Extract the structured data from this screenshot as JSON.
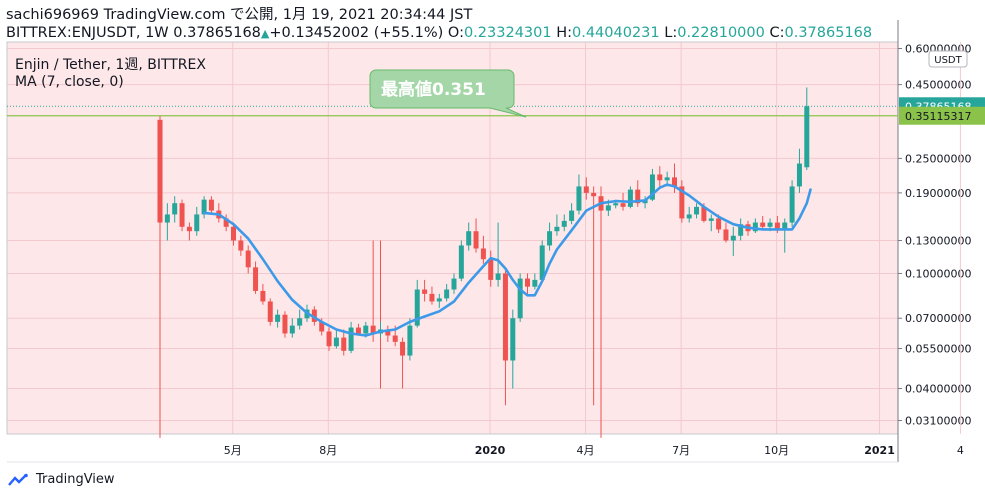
{
  "header": {
    "line1": "sachi696969 TradingView.com で公開, 1月 19, 2021 20:34:44 JST",
    "line2_prefix": "BITTREX:ENJUSDT, 1W 0.37865168",
    "change": "+0.13452002 (+55.1%)",
    "o_label": "O:",
    "o_value": "0.23324301",
    "h_label": "H:",
    "h_value": "0.44040231",
    "l_label": "L:",
    "l_value": "0.22810000",
    "c_label": "C:",
    "c_value": "0.37865168"
  },
  "chart_data": {
    "type": "line",
    "symbol_title": "Enjin / Tether, 1週, BITTREX",
    "indicator": "MA (7, close, 0)",
    "currency": "USDT",
    "y_scale": "log",
    "y_ticks": [
      0.6,
      0.45,
      0.25,
      0.19,
      0.13,
      0.1,
      0.07,
      0.055,
      0.04,
      0.031
    ],
    "y_tick_labels": [
      "0.60000000",
      "0.45000000",
      "0.25000000",
      "0.19000000",
      "0.13000000",
      "0.10000000",
      "0.07000000",
      "0.05500000",
      "0.04000000",
      "0.03100000"
    ],
    "x_tick_labels": [
      "5月",
      "8月",
      "2020",
      "4月",
      "7月",
      "10月",
      "2021",
      "4"
    ],
    "last_price_label": "0.37865168",
    "resistance_label": "0.35115317",
    "resistance_value": 0.35115317,
    "annotation": "最高値0.351",
    "candles": [
      [
        0.34,
        0.35,
        0.145,
        0.15
      ],
      [
        0.15,
        0.175,
        0.13,
        0.16
      ],
      [
        0.16,
        0.185,
        0.15,
        0.175
      ],
      [
        0.175,
        0.18,
        0.14,
        0.145
      ],
      [
        0.145,
        0.15,
        0.13,
        0.14
      ],
      [
        0.14,
        0.17,
        0.135,
        0.16
      ],
      [
        0.16,
        0.185,
        0.155,
        0.18
      ],
      [
        0.18,
        0.185,
        0.16,
        0.165
      ],
      [
        0.165,
        0.175,
        0.15,
        0.155
      ],
      [
        0.155,
        0.16,
        0.14,
        0.145
      ],
      [
        0.145,
        0.15,
        0.125,
        0.13
      ],
      [
        0.13,
        0.135,
        0.115,
        0.12
      ],
      [
        0.12,
        0.125,
        0.1,
        0.105
      ],
      [
        0.105,
        0.11,
        0.085,
        0.087
      ],
      [
        0.087,
        0.092,
        0.078,
        0.08
      ],
      [
        0.08,
        0.082,
        0.066,
        0.068
      ],
      [
        0.068,
        0.075,
        0.065,
        0.072
      ],
      [
        0.072,
        0.074,
        0.06,
        0.062
      ],
      [
        0.062,
        0.07,
        0.06,
        0.066
      ],
      [
        0.066,
        0.075,
        0.064,
        0.07
      ],
      [
        0.07,
        0.078,
        0.068,
        0.075
      ],
      [
        0.075,
        0.077,
        0.066,
        0.068
      ],
      [
        0.068,
        0.07,
        0.061,
        0.063
      ],
      [
        0.063,
        0.065,
        0.054,
        0.056
      ],
      [
        0.056,
        0.064,
        0.055,
        0.06
      ],
      [
        0.06,
        0.064,
        0.052,
        0.054
      ],
      [
        0.054,
        0.068,
        0.053,
        0.065
      ],
      [
        0.065,
        0.067,
        0.061,
        0.062
      ],
      [
        0.062,
        0.068,
        0.06,
        0.066
      ],
      [
        0.066,
        0.13,
        0.058,
        0.062
      ],
      [
        0.062,
        0.068,
        0.06,
        0.064
      ],
      [
        0.064,
        0.066,
        0.058,
        0.061
      ],
      [
        0.061,
        0.066,
        0.056,
        0.058
      ],
      [
        0.058,
        0.06,
        0.04,
        0.052
      ],
      [
        0.052,
        0.07,
        0.05,
        0.066
      ],
      [
        0.066,
        0.095,
        0.065,
        0.088
      ],
      [
        0.088,
        0.095,
        0.08,
        0.085
      ],
      [
        0.085,
        0.09,
        0.078,
        0.08
      ],
      [
        0.08,
        0.085,
        0.076,
        0.082
      ],
      [
        0.082,
        0.092,
        0.08,
        0.088
      ],
      [
        0.088,
        0.1,
        0.085,
        0.096
      ],
      [
        0.096,
        0.13,
        0.094,
        0.125
      ],
      [
        0.125,
        0.15,
        0.12,
        0.14
      ],
      [
        0.14,
        0.155,
        0.118,
        0.122
      ],
      [
        0.122,
        0.135,
        0.108,
        0.112
      ],
      [
        0.112,
        0.12,
        0.09,
        0.095
      ],
      [
        0.095,
        0.15,
        0.09,
        0.1
      ],
      [
        0.1,
        0.102,
        0.035,
        0.05
      ],
      [
        0.05,
        0.075,
        0.04,
        0.07
      ],
      [
        0.07,
        0.1,
        0.068,
        0.096
      ],
      [
        0.096,
        0.1,
        0.085,
        0.09
      ],
      [
        0.09,
        0.1,
        0.088,
        0.095
      ],
      [
        0.095,
        0.13,
        0.093,
        0.125
      ],
      [
        0.125,
        0.15,
        0.12,
        0.14
      ],
      [
        0.14,
        0.16,
        0.135,
        0.145
      ],
      [
        0.145,
        0.16,
        0.14,
        0.152
      ],
      [
        0.152,
        0.175,
        0.148,
        0.165
      ],
      [
        0.165,
        0.22,
        0.16,
        0.2
      ],
      [
        0.2,
        0.215,
        0.18,
        0.19
      ],
      [
        0.19,
        0.2,
        0.035,
        0.185
      ],
      [
        0.185,
        0.19,
        0.16,
        0.165
      ],
      [
        0.165,
        0.18,
        0.158,
        0.172
      ],
      [
        0.172,
        0.18,
        0.168,
        0.175
      ],
      [
        0.175,
        0.19,
        0.165,
        0.17
      ],
      [
        0.17,
        0.2,
        0.168,
        0.195
      ],
      [
        0.195,
        0.21,
        0.17,
        0.175
      ],
      [
        0.175,
        0.185,
        0.168,
        0.18
      ],
      [
        0.18,
        0.23,
        0.178,
        0.22
      ],
      [
        0.22,
        0.235,
        0.2,
        0.21
      ],
      [
        0.21,
        0.225,
        0.2,
        0.215
      ],
      [
        0.215,
        0.24,
        0.19,
        0.2
      ],
      [
        0.2,
        0.21,
        0.15,
        0.155
      ],
      [
        0.155,
        0.17,
        0.15,
        0.16
      ],
      [
        0.16,
        0.175,
        0.155,
        0.17
      ],
      [
        0.17,
        0.175,
        0.15,
        0.152
      ],
      [
        0.152,
        0.16,
        0.14,
        0.155
      ],
      [
        0.155,
        0.16,
        0.138,
        0.142
      ],
      [
        0.142,
        0.15,
        0.128,
        0.13
      ],
      [
        0.13,
        0.145,
        0.115,
        0.135
      ],
      [
        0.135,
        0.155,
        0.13,
        0.148
      ],
      [
        0.148,
        0.152,
        0.135,
        0.14
      ],
      [
        0.14,
        0.155,
        0.138,
        0.15
      ],
      [
        0.15,
        0.158,
        0.142,
        0.145
      ],
      [
        0.145,
        0.155,
        0.14,
        0.15
      ],
      [
        0.15,
        0.158,
        0.138,
        0.142
      ],
      [
        0.142,
        0.155,
        0.118,
        0.15
      ],
      [
        0.15,
        0.21,
        0.145,
        0.2
      ],
      [
        0.2,
        0.27,
        0.19,
        0.24
      ],
      [
        0.233,
        0.44,
        0.228,
        0.3787
      ]
    ],
    "ma": [
      [
        6,
        0.162
      ],
      [
        8,
        0.16
      ],
      [
        10,
        0.148
      ],
      [
        12,
        0.132
      ],
      [
        14,
        0.112
      ],
      [
        16,
        0.094
      ],
      [
        18,
        0.081
      ],
      [
        20,
        0.073
      ],
      [
        22,
        0.068
      ],
      [
        24,
        0.064
      ],
      [
        26,
        0.062
      ],
      [
        28,
        0.061
      ],
      [
        30,
        0.063
      ],
      [
        32,
        0.064
      ],
      [
        34,
        0.068
      ],
      [
        36,
        0.071
      ],
      [
        38,
        0.074
      ],
      [
        40,
        0.08
      ],
      [
        42,
        0.093
      ],
      [
        44,
        0.106
      ],
      [
        45,
        0.113
      ],
      [
        46,
        0.111
      ],
      [
        47,
        0.104
      ],
      [
        48,
        0.095
      ],
      [
        49,
        0.088
      ],
      [
        50,
        0.084
      ],
      [
        51,
        0.084
      ],
      [
        52,
        0.094
      ],
      [
        53,
        0.108
      ],
      [
        54,
        0.121
      ],
      [
        56,
        0.141
      ],
      [
        58,
        0.165
      ],
      [
        60,
        0.175
      ],
      [
        62,
        0.178
      ],
      [
        64,
        0.177
      ],
      [
        66,
        0.179
      ],
      [
        67,
        0.188
      ],
      [
        68,
        0.198
      ],
      [
        69,
        0.203
      ],
      [
        70,
        0.2
      ],
      [
        72,
        0.186
      ],
      [
        74,
        0.17
      ],
      [
        76,
        0.157
      ],
      [
        78,
        0.148
      ],
      [
        80,
        0.144
      ],
      [
        82,
        0.142
      ],
      [
        84,
        0.142
      ],
      [
        86,
        0.142
      ],
      [
        87,
        0.155
      ],
      [
        88,
        0.175
      ],
      [
        88.5,
        0.195
      ]
    ],
    "x_ticks_at": [
      5,
      18,
      40,
      53,
      66,
      79,
      93,
      104
    ],
    "spikes": [
      [
        0,
        0.3,
        0.027
      ],
      [
        30,
        0.13,
        0.04
      ],
      [
        60,
        0.2,
        0.027
      ]
    ]
  },
  "footer": {
    "brand": "TradingView"
  }
}
